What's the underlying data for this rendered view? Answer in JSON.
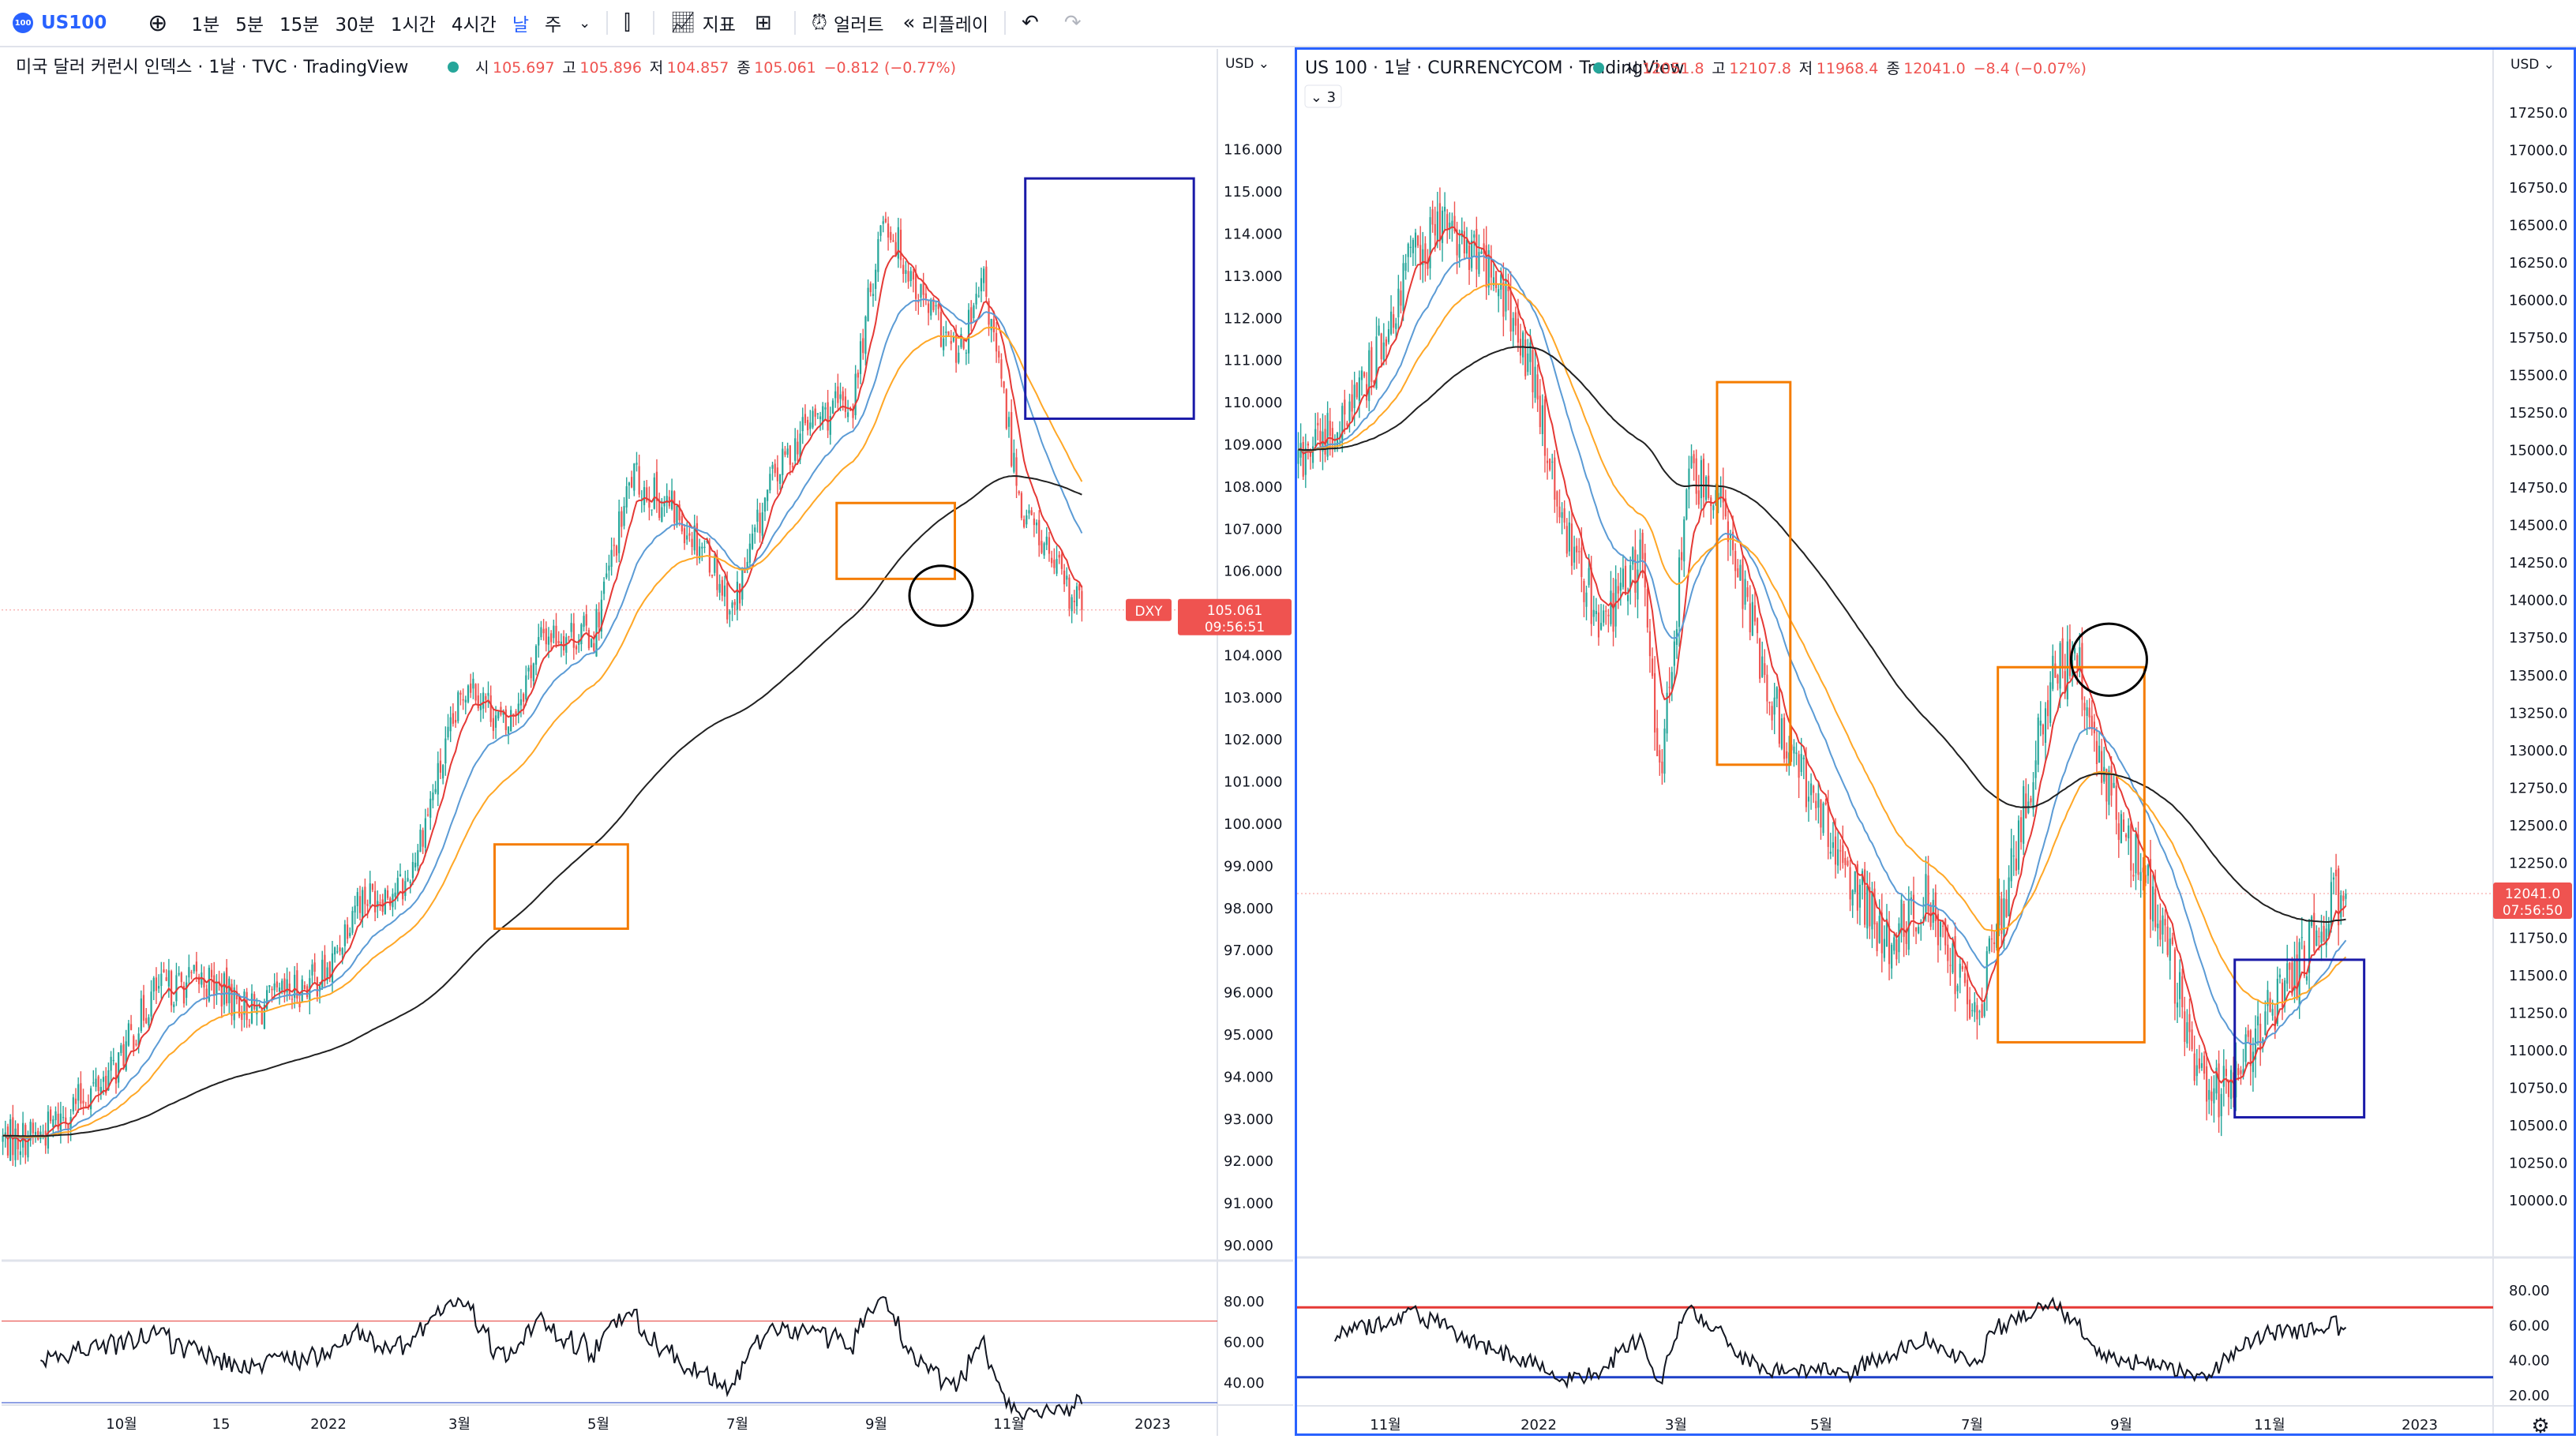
{
  "toolbar": {
    "symbol_badge": "100",
    "symbol": "US100",
    "intervals": [
      "1분",
      "5분",
      "15분",
      "30분",
      "1시간",
      "4시간",
      "날",
      "주"
    ],
    "active_interval": "날",
    "indicators_label": "지표",
    "alert_label": "얼러트",
    "replay_label": "리플레이"
  },
  "colors": {
    "up": "#26a69a",
    "down": "#ef5350",
    "ma_fast": "#e53935",
    "ma_mid": "#5b9bd5",
    "ma_slow": "#ffa726",
    "ma_long": "#212121",
    "rsi_line": "#131722",
    "rsi_upper": "#e53935",
    "rsi_lower": "#1e40c8",
    "box_orange": "#f57c00",
    "box_blue": "#1a1aa8",
    "accent": "#2962ff"
  },
  "left_chart": {
    "legend_title": "미국 달러 커런시 인덱스 · 1날 · TVC · TradingView",
    "ohlc": {
      "o_label": "시",
      "o": "105.697",
      "h_label": "고",
      "h": "105.896",
      "l_label": "저",
      "l": "104.857",
      "c_label": "종",
      "c": "105.061",
      "chg": "−0.812 (−0.77%)"
    },
    "currency": "USD",
    "price_ticks": [
      "116.000",
      "115.000",
      "114.000",
      "113.000",
      "112.000",
      "111.000",
      "110.000",
      "109.000",
      "108.000",
      "107.000",
      "106.000",
      "104.000",
      "103.000",
      "102.000",
      "101.000",
      "100.000",
      "99.000",
      "98.000",
      "97.000",
      "96.000",
      "95.000",
      "94.000",
      "93.000",
      "92.000",
      "91.000",
      "90.000"
    ],
    "last_tag": {
      "symbol": "DXY",
      "price": "105.061",
      "countdown": "09:56:51"
    },
    "rsi_ticks": [
      "80.00",
      "60.00",
      "40.00"
    ],
    "time_ticks": [
      "10월",
      "15",
      "2022",
      "3월",
      "5월",
      "7월",
      "9월",
      "11월",
      "2023"
    ]
  },
  "right_chart": {
    "legend_title": "US 100 · 1날 · CURRENCYCOM · TradingView",
    "ohlc": {
      "o_label": "시",
      "o": "12051.8",
      "h_label": "고",
      "h": "12107.8",
      "l_label": "저",
      "l": "11968.4",
      "c_label": "종",
      "c": "12041.0",
      "chg": "−8.4 (−0.07%)"
    },
    "collapsed_badge": "3",
    "currency": "USD",
    "price_ticks": [
      "17250.0",
      "17000.0",
      "16750.0",
      "16500.0",
      "16250.0",
      "16000.0",
      "15750.0",
      "15500.0",
      "15250.0",
      "15000.0",
      "14750.0",
      "14500.0",
      "14250.0",
      "14000.0",
      "13750.0",
      "13500.0",
      "13250.0",
      "13000.0",
      "12750.0",
      "12500.0",
      "12250.0",
      "11750.0",
      "11500.0",
      "11250.0",
      "11000.0",
      "10750.0",
      "10500.0",
      "10250.0",
      "10000.0"
    ],
    "last_tag": {
      "price": "12041.0",
      "countdown": "07:56:50"
    },
    "rsi_ticks": [
      "80.00",
      "60.00",
      "40.00",
      "20.00"
    ],
    "time_ticks": [
      "11월",
      "2022",
      "3월",
      "5월",
      "7월",
      "9월",
      "11월",
      "2023"
    ]
  },
  "chart_data": [
    {
      "type": "candlestick",
      "title": "미국 달러 커런시 인덱스 · 1날 · TVC · TradingView",
      "ylim": [
        90,
        116.5
      ],
      "x_range": [
        "2021-09-14",
        "2022-11-20"
      ],
      "anchors": [
        [
          0,
          92.5
        ],
        [
          15,
          92.6
        ],
        [
          30,
          93.4
        ],
        [
          45,
          94.2
        ],
        [
          60,
          96.0
        ],
        [
          80,
          96.3
        ],
        [
          100,
          95.5
        ],
        [
          115,
          96.0
        ],
        [
          130,
          96.5
        ],
        [
          140,
          98.2
        ],
        [
          160,
          98.5
        ],
        [
          185,
          103.5
        ],
        [
          200,
          102.2
        ],
        [
          215,
          104.5
        ],
        [
          235,
          104.5
        ],
        [
          250,
          108.2
        ],
        [
          265,
          107.5
        ],
        [
          280,
          106.5
        ],
        [
          290,
          105.0
        ],
        [
          305,
          108.0
        ],
        [
          320,
          109.5
        ],
        [
          338,
          110.0
        ],
        [
          350,
          114.5
        ],
        [
          365,
          112.5
        ],
        [
          380,
          111.0
        ],
        [
          390,
          112.8
        ],
        [
          398,
          110.0
        ],
        [
          405,
          107.5
        ],
        [
          415,
          106.5
        ],
        [
          425,
          105.2
        ]
      ],
      "last_close": 105.061,
      "rsi_ylim": [
        30,
        90
      ],
      "rsi_levels": [
        70,
        30
      ],
      "annotation_boxes": [
        {
          "color": "orange",
          "from_idx": 196,
          "to_idx": 248,
          "low": 97.5,
          "high": 99.5
        },
        {
          "color": "orange",
          "from_idx": 332,
          "to_idx": 378,
          "low": 105.8,
          "high": 107.6
        },
        {
          "color": "blue",
          "from_idx": 407,
          "to_idx": 473,
          "low": 109.6,
          "high": 115.3
        }
      ],
      "annotation_circles": [
        {
          "idx": 373,
          "value": 105.4
        }
      ]
    },
    {
      "type": "candlestick",
      "title": "US 100 · 1날 · CURRENCYCOM · TradingView",
      "ylim": [
        9800,
        17350
      ],
      "x_range": [
        "2021-10-01",
        "2022-11-25"
      ],
      "anchors": [
        [
          0,
          14900
        ],
        [
          25,
          15300
        ],
        [
          45,
          16200
        ],
        [
          60,
          16500
        ],
        [
          75,
          16300
        ],
        [
          95,
          15600
        ],
        [
          110,
          14400
        ],
        [
          125,
          13800
        ],
        [
          140,
          14300
        ],
        [
          148,
          12800
        ],
        [
          160,
          14800
        ],
        [
          170,
          14800
        ],
        [
          185,
          13900
        ],
        [
          200,
          13000
        ],
        [
          220,
          12400
        ],
        [
          240,
          11700
        ],
        [
          258,
          12000
        ],
        [
          278,
          11200
        ],
        [
          300,
          12800
        ],
        [
          310,
          13600
        ],
        [
          320,
          13500
        ],
        [
          330,
          12800
        ],
        [
          345,
          12200
        ],
        [
          355,
          11700
        ],
        [
          370,
          10800
        ],
        [
          380,
          10700
        ],
        [
          395,
          11200
        ],
        [
          410,
          11550
        ],
        [
          420,
          11900
        ],
        [
          428,
          12041
        ]
      ],
      "last_close": 12041.0,
      "rsi_ylim": [
        15,
        85
      ],
      "rsi_levels": [
        70,
        30
      ],
      "annotation_boxes": [
        {
          "color": "orange",
          "from_idx": 172,
          "to_idx": 201,
          "low": 12900,
          "high": 15450
        },
        {
          "color": "orange",
          "from_idx": 287,
          "to_idx": 346,
          "low": 11050,
          "high": 13550
        },
        {
          "color": "blue",
          "from_idx": 384,
          "to_idx": 436,
          "low": 10550,
          "high": 11600
        }
      ],
      "annotation_circles": [
        {
          "idx": 332,
          "value": 13600
        }
      ]
    }
  ]
}
